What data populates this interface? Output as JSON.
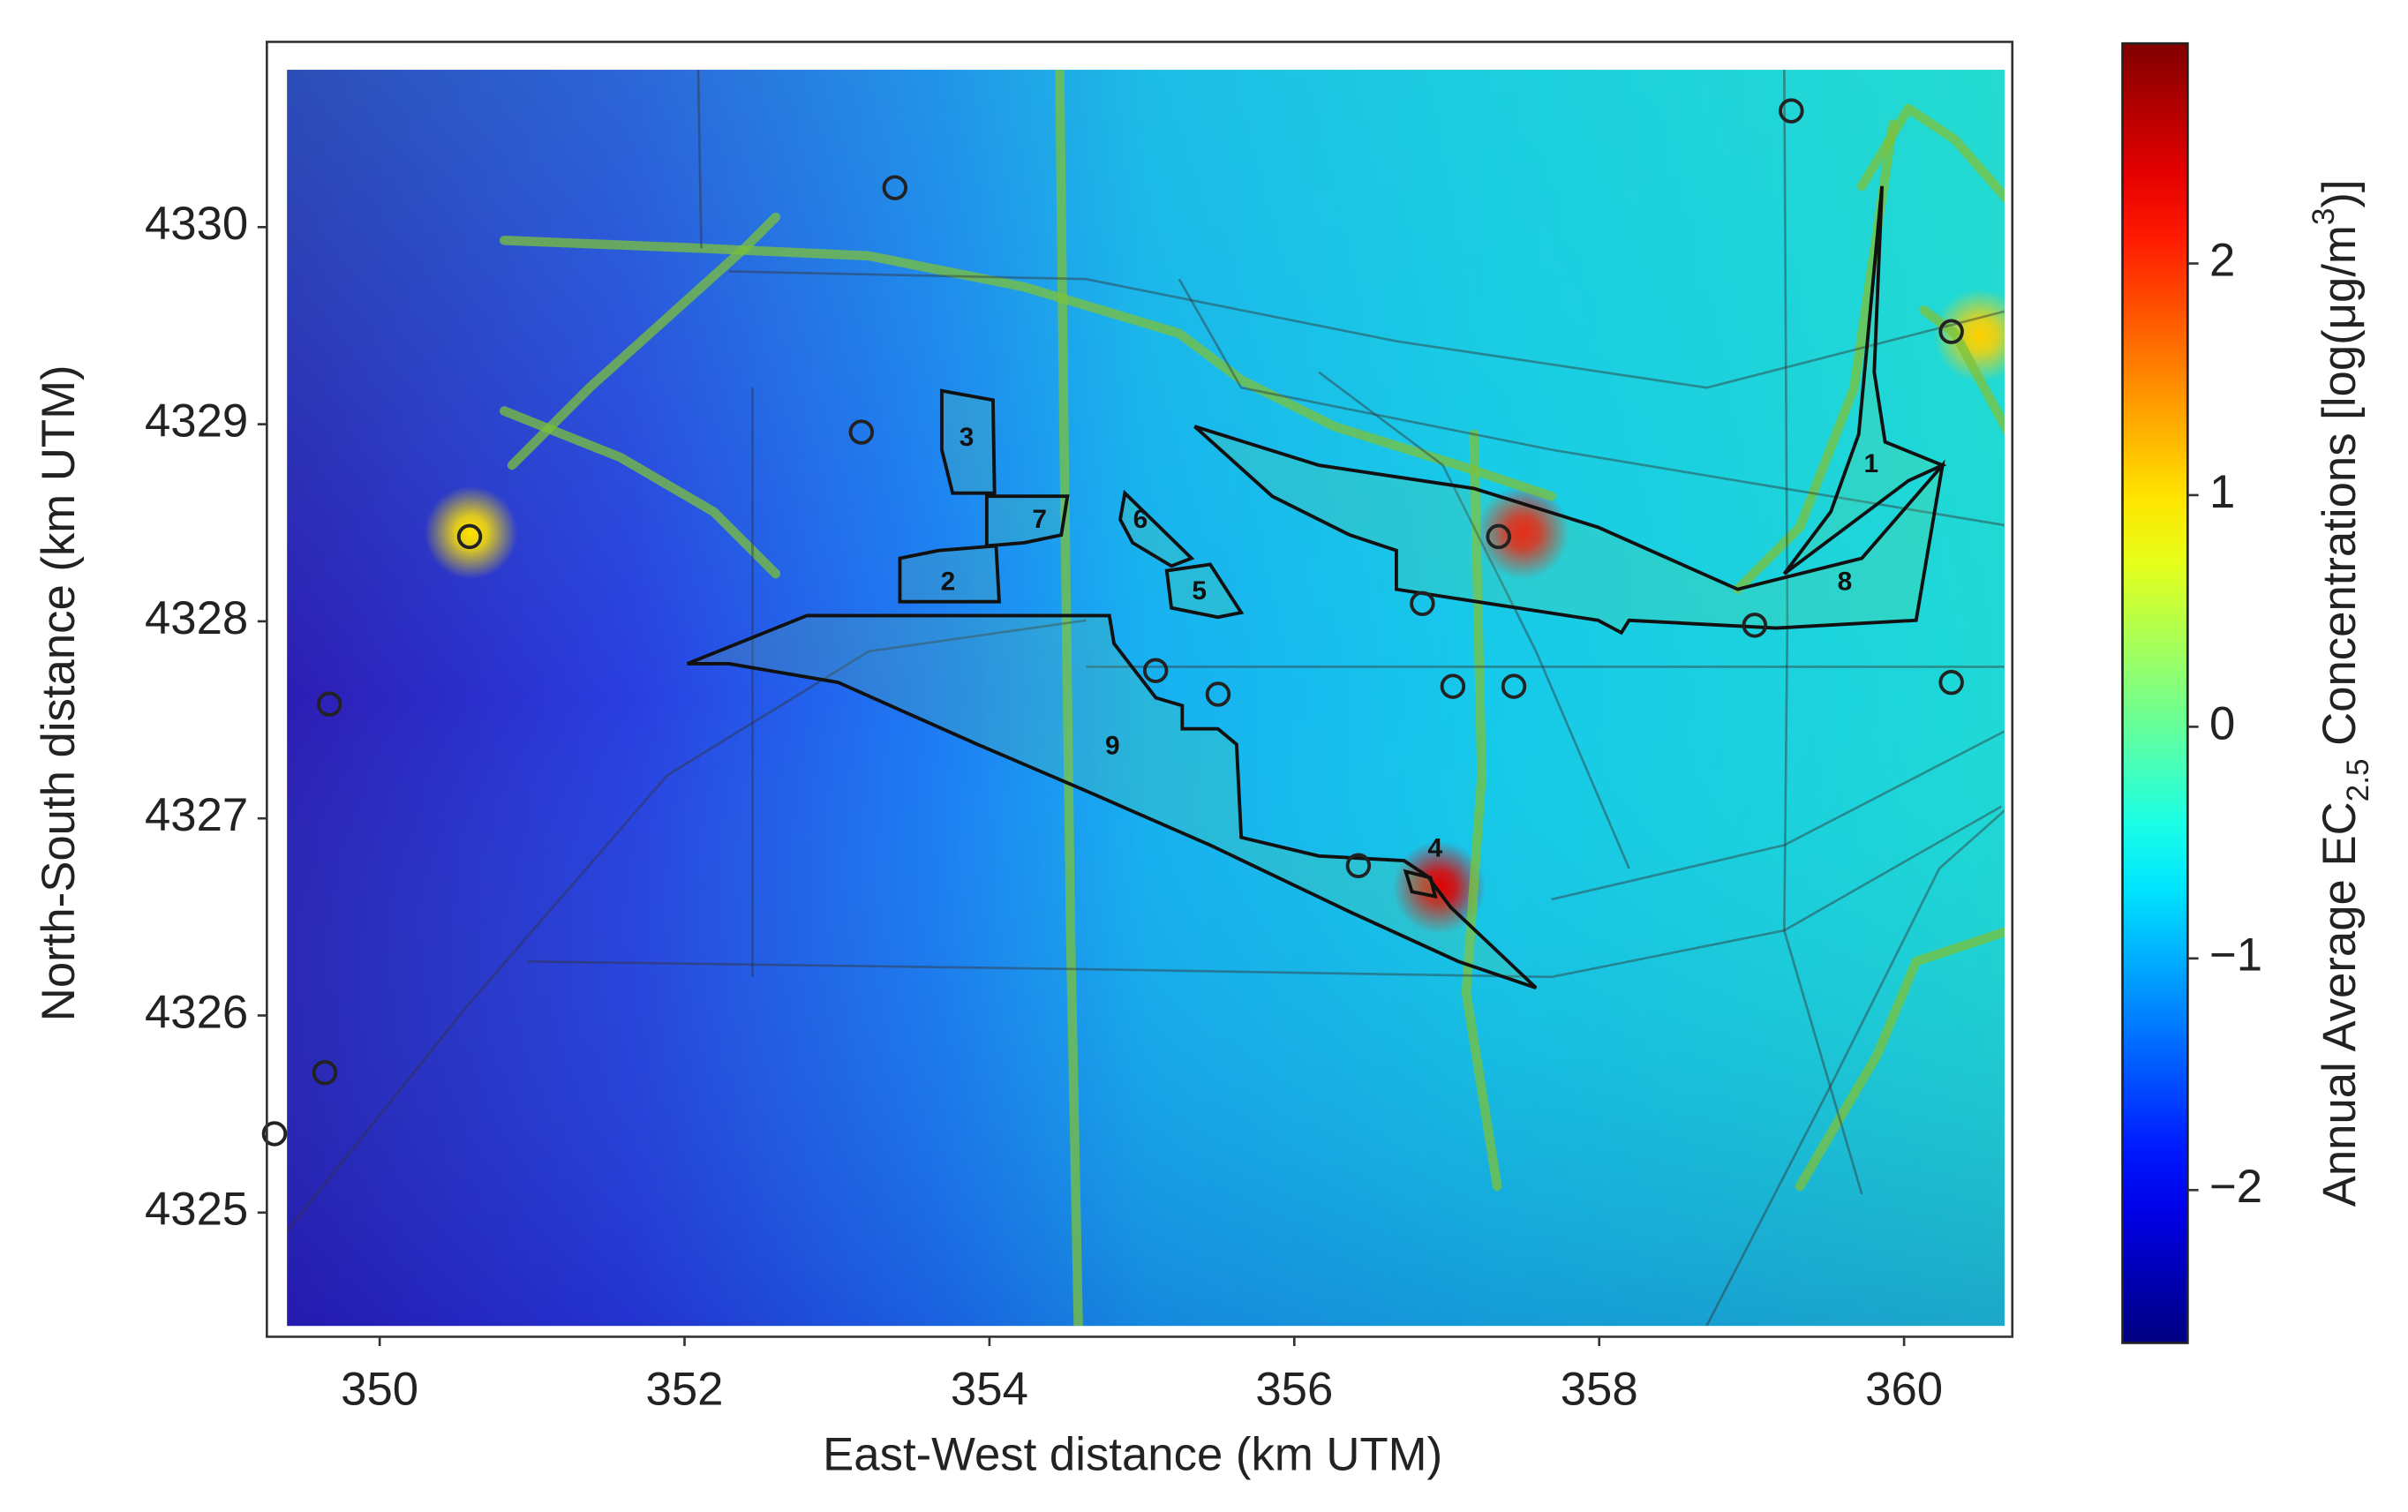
{
  "chart_data": {
    "type": "heatmap",
    "xlabel": "East-West distance (km UTM)",
    "ylabel": "North-South distance (km UTM)",
    "colorbar_label": [
      "Annual Average EC",
      "2.5",
      " Concentrations [log(μg/m",
      "3",
      ")]"
    ],
    "xlim": [
      349.26,
      360.71
    ],
    "ylim": [
      4324.37,
      4330.94
    ],
    "xticks": [
      350,
      352,
      354,
      356,
      358,
      360
    ],
    "yticks": [
      4325,
      4326,
      4327,
      4328,
      4329,
      4330
    ],
    "clim": [
      -2.66,
      2.95
    ],
    "cticks": [
      {
        "value": -2,
        "label": "−2"
      },
      {
        "value": -1,
        "label": "−1"
      },
      0,
      1,
      2
    ],
    "zones": [
      "1",
      "2",
      "3",
      "4",
      "5",
      "6",
      "7",
      "8",
      "9"
    ],
    "hotspots": {
      "x": [
        357.5,
        356.95,
        350.6,
        360.5
      ],
      "y": [
        4328.45,
        4326.65,
        4328.45,
        4329.45
      ],
      "values": [
        2.2,
        2.4,
        1.0,
        1.1
      ]
    },
    "monitors": {
      "x": [
        353.38,
        359.26,
        360.31,
        353.16,
        350.59,
        357.34,
        349.67,
        356.84,
        359.02,
        355.09,
        355.5,
        357.04,
        357.44,
        360.31,
        356.42,
        349.64,
        349.31
      ],
      "y": [
        4330.2,
        4330.59,
        4329.47,
        4328.96,
        4328.43,
        4328.43,
        4327.58,
        4328.09,
        4327.98,
        4327.75,
        4327.63,
        4327.67,
        4327.67,
        4327.69,
        4326.76,
        4325.71,
        4325.4
      ]
    }
  }
}
